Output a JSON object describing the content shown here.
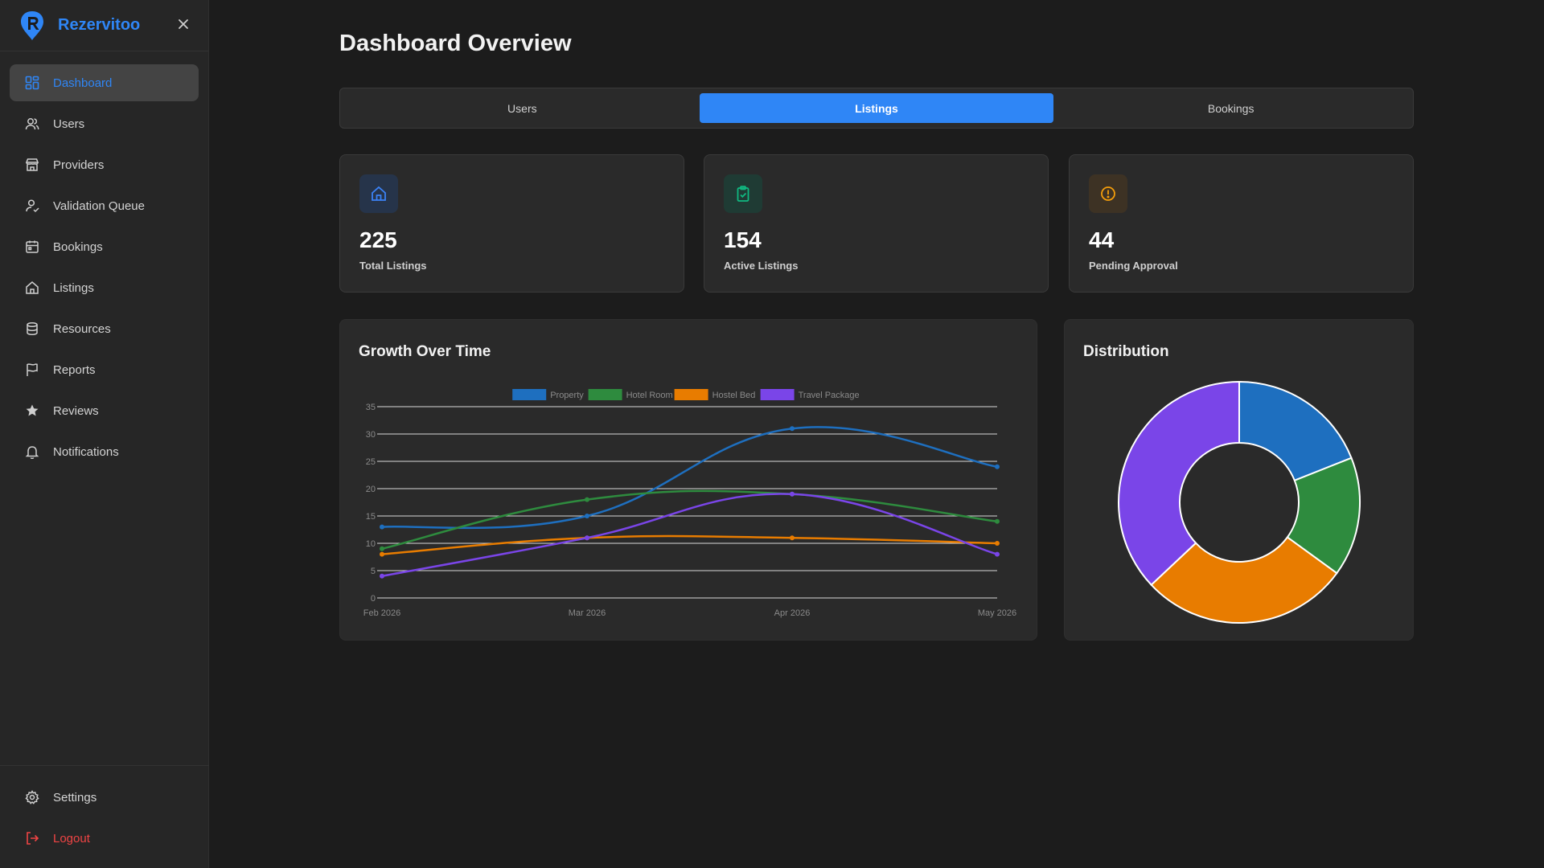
{
  "app": {
    "name": "Rezervitoo"
  },
  "sidebar": {
    "items": [
      {
        "label": "Dashboard",
        "icon": "dashboard-icon",
        "active": true
      },
      {
        "label": "Users",
        "icon": "users-icon"
      },
      {
        "label": "Providers",
        "icon": "store-icon"
      },
      {
        "label": "Validation Queue",
        "icon": "user-check-icon"
      },
      {
        "label": "Bookings",
        "icon": "calendar-icon"
      },
      {
        "label": "Listings",
        "icon": "home-icon"
      },
      {
        "label": "Resources",
        "icon": "database-icon"
      },
      {
        "label": "Reports",
        "icon": "flag-icon"
      },
      {
        "label": "Reviews",
        "icon": "star-icon"
      },
      {
        "label": "Notifications",
        "icon": "bell-icon"
      }
    ],
    "settings_label": "Settings",
    "logout_label": "Logout"
  },
  "page": {
    "title": "Dashboard Overview"
  },
  "tabs": [
    {
      "label": "Users"
    },
    {
      "label": "Listings",
      "active": true
    },
    {
      "label": "Bookings"
    }
  ],
  "stats": [
    {
      "value": "225",
      "label": "Total Listings",
      "icon": "home-icon",
      "color": "#3b82f6"
    },
    {
      "value": "154",
      "label": "Active Listings",
      "icon": "clipboard-check-icon",
      "color": "#10b981"
    },
    {
      "value": "44",
      "label": "Pending Approval",
      "icon": "alert-circle-icon",
      "color": "#f59e0b"
    }
  ],
  "growth": {
    "title": "Growth Over Time"
  },
  "distribution": {
    "title": "Distribution"
  },
  "chart_data": [
    {
      "type": "line",
      "title": "Growth Over Time",
      "x": [
        "Feb 2026",
        "Mar 2026",
        "Apr 2026",
        "May 2026"
      ],
      "ylim": [
        0,
        35
      ],
      "yticks": [
        0,
        5,
        10,
        15,
        20,
        25,
        30,
        35
      ],
      "grid": true,
      "legend": "top-center",
      "series": [
        {
          "name": "Property",
          "color": "#1e6fbf",
          "values": [
            13,
            15,
            31,
            24
          ]
        },
        {
          "name": "Hotel Room",
          "color": "#2e8b3e",
          "values": [
            9,
            18,
            19,
            14
          ]
        },
        {
          "name": "Hostel Bed",
          "color": "#e87c00",
          "values": [
            8,
            11,
            11,
            10
          ]
        },
        {
          "name": "Travel Package",
          "color": "#7a45e8",
          "values": [
            4,
            11,
            19,
            8
          ]
        }
      ]
    },
    {
      "type": "pie",
      "title": "Distribution",
      "donut": true,
      "slices": [
        {
          "name": "Property",
          "color": "#1e6fbf",
          "value": 19
        },
        {
          "name": "Hotel Room",
          "color": "#2e8b3e",
          "value": 16
        },
        {
          "name": "Hostel Bed",
          "color": "#e87c00",
          "value": 28
        },
        {
          "name": "Travel Package",
          "color": "#7a45e8",
          "value": 37
        }
      ]
    }
  ]
}
